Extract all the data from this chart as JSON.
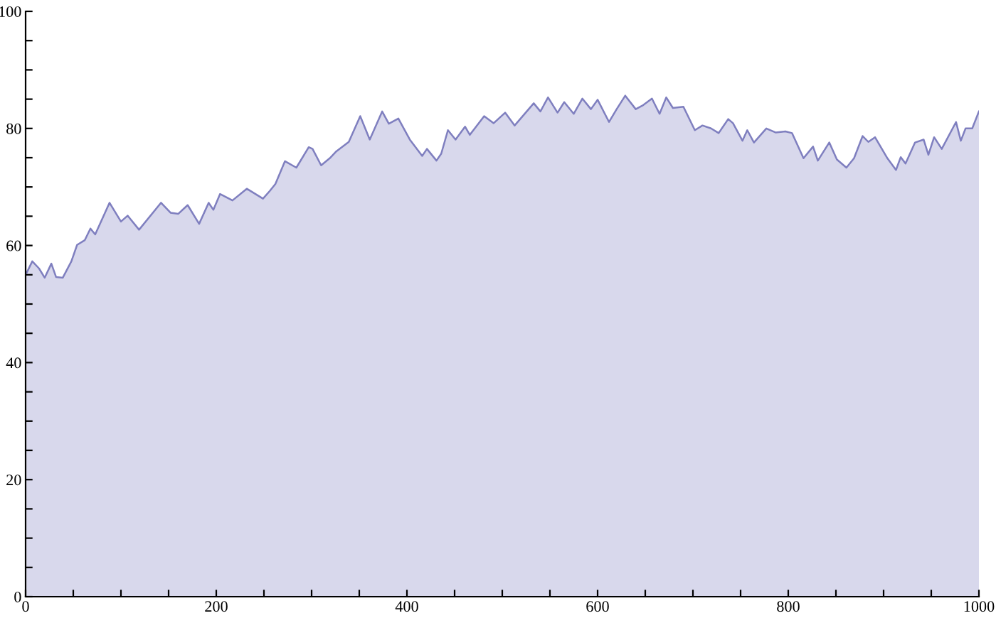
{
  "chart_data": {
    "type": "area",
    "series": [
      {
        "color": "#7f7fbf",
        "x": [
          1,
          7,
          14,
          20,
          27,
          32,
          39,
          48,
          54,
          62,
          68,
          73,
          88,
          100,
          107,
          119,
          142,
          152,
          160,
          170,
          182,
          192,
          197,
          204,
          217,
          232,
          249,
          256,
          262,
          272,
          284,
          297,
          301,
          310,
          319,
          326,
          339,
          351,
          361,
          374,
          381,
          391,
          403,
          416,
          421,
          431,
          436,
          443,
          451,
          461,
          466,
          481,
          491,
          503,
          513,
          533,
          540,
          548,
          558,
          565,
          575,
          584,
          593,
          600,
          612,
          620,
          629,
          640,
          647,
          657,
          665,
          672,
          679,
          690,
          702,
          710,
          719,
          727,
          737,
          742,
          752,
          757,
          764,
          777,
          787,
          797,
          804,
          816,
          826,
          831,
          843,
          851,
          861,
          869,
          878,
          884,
          891,
          904,
          913,
          918,
          923,
          933,
          942,
          947,
          953,
          961,
          976,
          981,
          986,
          993,
          1000
        ],
        "values": [
          55.3,
          57.3,
          56.1,
          54.5,
          56.9,
          54.6,
          54.5,
          57.3,
          60.1,
          60.9,
          62.9,
          61.9,
          67.3,
          64.1,
          65.1,
          62.7,
          67.3,
          65.6,
          65.4,
          66.9,
          63.7,
          67.3,
          66.1,
          68.8,
          67.7,
          69.7,
          68.0,
          69.3,
          70.5,
          74.4,
          73.3,
          76.8,
          76.5,
          73.7,
          74.9,
          76.1,
          77.7,
          82.1,
          78.1,
          82.9,
          80.8,
          81.7,
          78.1,
          75.3,
          76.5,
          74.5,
          75.7,
          79.7,
          78.1,
          80.3,
          78.9,
          82.1,
          80.9,
          82.7,
          80.5,
          84.3,
          82.9,
          85.3,
          82.7,
          84.5,
          82.5,
          85.1,
          83.3,
          84.9,
          81.1,
          83.3,
          85.6,
          83.3,
          83.9,
          85.1,
          82.5,
          85.3,
          83.5,
          83.7,
          79.7,
          80.5,
          80.0,
          79.2,
          81.6,
          80.9,
          77.9,
          79.7,
          77.6,
          80.0,
          79.3,
          79.5,
          79.2,
          74.9,
          76.9,
          74.5,
          77.6,
          74.7,
          73.3,
          74.9,
          78.7,
          77.7,
          78.5,
          74.9,
          72.9,
          75.1,
          74.0,
          77.6,
          78.1,
          75.5,
          78.5,
          76.5,
          81.1,
          77.9,
          80.0,
          80.0,
          82.9
        ]
      }
    ],
    "xlim": [
      0,
      1000
    ],
    "xticks": [
      0,
      {
        "value": 50,
        "label": null
      },
      {
        "value": 100,
        "label": null
      },
      {
        "value": 150,
        "label": null
      },
      200,
      {
        "value": 250,
        "label": null
      },
      {
        "value": 300,
        "label": null
      },
      {
        "value": 350,
        "label": null
      },
      400,
      {
        "value": 450,
        "label": null
      },
      {
        "value": 500,
        "label": null
      },
      {
        "value": 550,
        "label": null
      },
      600,
      {
        "value": 650,
        "label": null
      },
      {
        "value": 700,
        "label": null
      },
      {
        "value": 750,
        "label": null
      },
      800,
      {
        "value": 850,
        "label": null
      },
      {
        "value": 900,
        "label": null
      },
      {
        "value": 950,
        "label": null
      },
      1000
    ],
    "ylim": [
      0,
      100
    ],
    "yticks": [
      0,
      {
        "value": 5,
        "label": null
      },
      {
        "value": 10,
        "label": null
      },
      {
        "value": 15,
        "label": null
      },
      20,
      {
        "value": 25,
        "label": null
      },
      {
        "value": 30,
        "label": null
      },
      {
        "value": 35,
        "label": null
      },
      40,
      {
        "value": 45,
        "label": null
      },
      {
        "value": 50,
        "label": null
      },
      {
        "value": 55,
        "label": null
      },
      60,
      {
        "value": 65,
        "label": null
      },
      {
        "value": 70,
        "label": null
      },
      {
        "value": 75,
        "label": null
      },
      80,
      {
        "value": 85,
        "label": null
      },
      {
        "value": 90,
        "label": null
      },
      {
        "value": 95,
        "label": null
      },
      100
    ],
    "grid": false,
    "legend": false
  }
}
